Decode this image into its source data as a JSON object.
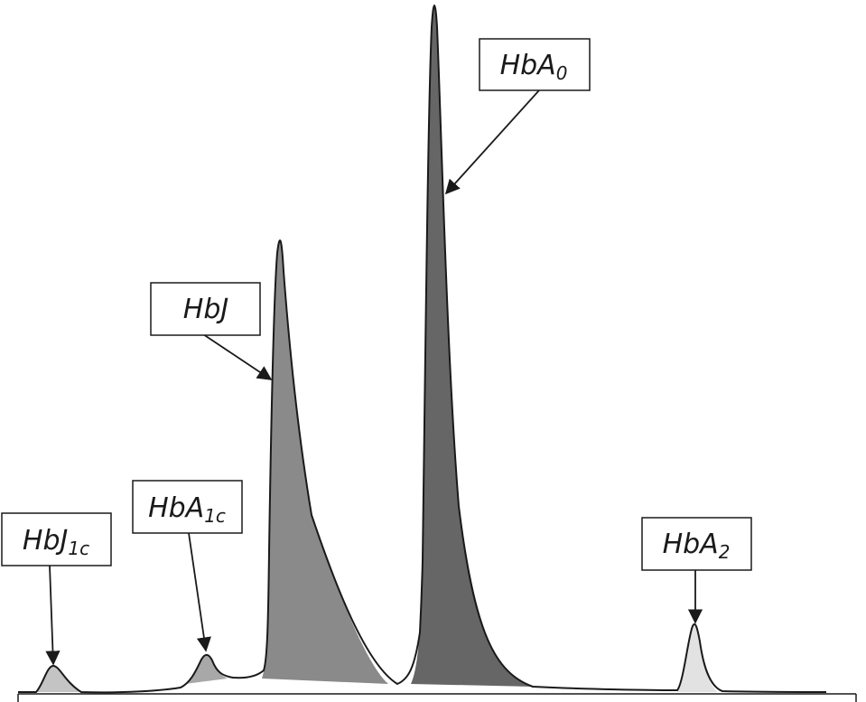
{
  "chart_data": {
    "type": "area",
    "title": "",
    "xlabel": "",
    "ylabel": "",
    "axis_ticks": "none",
    "grid": false,
    "peaks": [
      {
        "id": "hbj1c",
        "label": "HbJ",
        "sub": "1c",
        "fill": "#c4c4c4"
      },
      {
        "id": "hba1c",
        "label": "HbA",
        "sub": "1c",
        "fill": "#a8a8a8"
      },
      {
        "id": "hbj",
        "label": "HbJ",
        "sub": "",
        "fill": "#8a8a8a"
      },
      {
        "id": "hba0",
        "label": "HbA",
        "sub": "0",
        "fill": "#666666"
      },
      {
        "id": "hba2",
        "label": "HbA",
        "sub": "2",
        "fill": "#e2e2e2"
      }
    ]
  }
}
